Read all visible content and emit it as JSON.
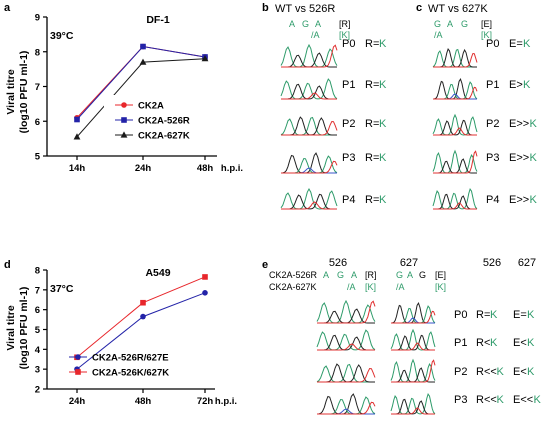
{
  "panels": {
    "a": "a",
    "b": "b",
    "c": "c",
    "d": "d",
    "e": "e"
  },
  "charts": [
    {
      "type": "line",
      "title": "DF-1",
      "temp": "39°C",
      "categories": [
        "14h",
        "24h",
        "48h"
      ],
      "x_unit": "h.p.i.",
      "ylabel_line1": "Viral titre",
      "ylabel_line2": "(log10 PFU ml-1)",
      "ylim": [
        5,
        9
      ],
      "yticks": [
        "5",
        "6",
        "7",
        "8",
        "9"
      ],
      "series": [
        {
          "name": "CK2A",
          "color": "#e8262b",
          "marker": "circle",
          "values": [
            6.1,
            8.15,
            7.85
          ]
        },
        {
          "name": "CK2A-526R",
          "color": "#2323a8",
          "marker": "square",
          "values": [
            6.05,
            8.15,
            7.85
          ]
        },
        {
          "name": "CK2A-627K",
          "color": "#1a1a1a",
          "marker": "triangle",
          "values": [
            5.55,
            7.7,
            7.8
          ]
        }
      ]
    },
    {
      "type": "line",
      "title": "A549",
      "temp": "37°C",
      "categories": [
        "24h",
        "48h",
        "72h"
      ],
      "x_unit": "h.p.i.",
      "ylabel_line1": "Viral titre",
      "ylabel_line2": "(log10 PFU ml-1)",
      "ylim": [
        2,
        8
      ],
      "yticks": [
        "2",
        "3",
        "4",
        "5",
        "6",
        "7",
        "8"
      ],
      "series": [
        {
          "name": "CK2A-526R/627E",
          "color": "#2323a8",
          "marker": "circle",
          "values": [
            3.0,
            5.65,
            6.85
          ]
        },
        {
          "name": "CK2A-526K/627K",
          "color": "#e8262b",
          "marker": "square",
          "values": [
            3.6,
            6.35,
            7.65
          ]
        }
      ]
    }
  ],
  "panel_b": {
    "title": "WT vs 526R",
    "nuc1": [
      "A",
      "G",
      "A"
    ],
    "nuc2": "/A",
    "code1": "[R]",
    "code2": "[K]",
    "rows": [
      {
        "p": "P0",
        "r": "R=",
        "k": "K"
      },
      {
        "p": "P1",
        "r": "R=",
        "k": "K"
      },
      {
        "p": "P2",
        "r": "R=",
        "k": "K"
      },
      {
        "p": "P3",
        "r": "R=",
        "k": "K"
      },
      {
        "p": "P4",
        "r": "R=",
        "k": "K"
      }
    ]
  },
  "panel_c": {
    "title": "WT vs 627K",
    "nuc1": [
      "G",
      "A",
      "G"
    ],
    "nuc2": "/A",
    "code1": "[E]",
    "code2": "[K]",
    "rows": [
      {
        "p": "P0",
        "r": "E=",
        "k": "K"
      },
      {
        "p": "P1",
        "r": "E>",
        "k": "K"
      },
      {
        "p": "P2",
        "r": "E>>",
        "k": "K"
      },
      {
        "p": "P3",
        "r": "E>>",
        "k": "K"
      },
      {
        "p": "P4",
        "r": "E>>",
        "k": "K"
      }
    ]
  },
  "panel_e": {
    "col526": "526",
    "col627": "627",
    "hdr526": "526",
    "hdr627": "627",
    "label1": "CK2A-526R",
    "label2": "CK2A-627K",
    "nuc526": [
      "A",
      "G",
      "A"
    ],
    "code526a": "[R]",
    "nuc526b": "/A",
    "code526b": "[K]",
    "nuc627": [
      "G",
      "A",
      "G"
    ],
    "code627a": "[E]",
    "nuc627b": "/A",
    "code627b": "[K]",
    "rows": [
      {
        "p": "P0",
        "a": "R=",
        "ak": "K",
        "b": "E=",
        "bk": "K"
      },
      {
        "p": "P1",
        "a": "R<",
        "ak": "K",
        "b": "E<",
        "bk": "K"
      },
      {
        "p": "P2",
        "a": "R<<",
        "ak": "K",
        "b": "E<",
        "bk": "K"
      },
      {
        "p": "P3",
        "a": "R<<",
        "ak": "K",
        "b": "E<<",
        "bk": "K"
      }
    ]
  }
}
